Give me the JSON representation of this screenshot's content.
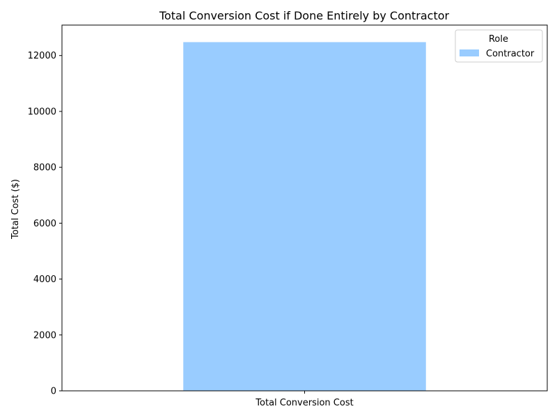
{
  "chart_data": {
    "type": "bar",
    "title": "Total Conversion Cost if Done Entirely by Contractor",
    "xlabel": "",
    "ylabel": "Total Cost ($)",
    "categories": [
      "Total Conversion Cost"
    ],
    "series": [
      {
        "name": "Contractor",
        "values": [
          12480
        ],
        "color": "#99ccff"
      }
    ],
    "ylim": [
      0,
      13090
    ],
    "yticks": [
      0,
      2000,
      4000,
      6000,
      8000,
      10000,
      12000
    ],
    "ytick_labels": [
      "0",
      "2000",
      "4000",
      "6000",
      "8000",
      "10000",
      "12000"
    ],
    "grid": false,
    "legend": {
      "title": "Role",
      "placement": "top-right"
    }
  }
}
